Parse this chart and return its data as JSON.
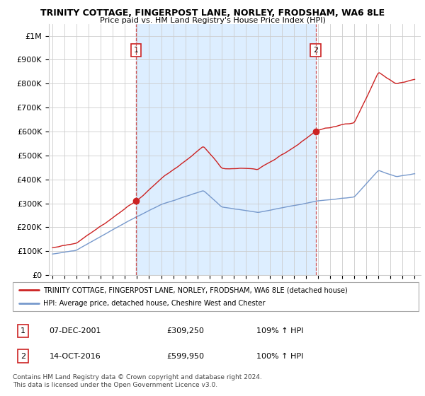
{
  "title": "TRINITY COTTAGE, FINGERPOST LANE, NORLEY, FRODSHAM, WA6 8LE",
  "subtitle": "Price paid vs. HM Land Registry's House Price Index (HPI)",
  "legend_line1": "TRINITY COTTAGE, FINGERPOST LANE, NORLEY, FRODSHAM, WA6 8LE (detached house)",
  "legend_line2": "HPI: Average price, detached house, Cheshire West and Chester",
  "sale1_label": "1",
  "sale1_date": "07-DEC-2001",
  "sale1_price": "£309,250",
  "sale1_hpi": "109% ↑ HPI",
  "sale1_year": 2001.92,
  "sale1_value": 309250,
  "sale2_label": "2",
  "sale2_date": "14-OCT-2016",
  "sale2_price": "£599,950",
  "sale2_hpi": "100% ↑ HPI",
  "sale2_year": 2016.79,
  "sale2_value": 599950,
  "red_color": "#cc2222",
  "blue_color": "#7799cc",
  "shade_color": "#ddeeff",
  "dashed_color": "#cc4444",
  "background_color": "#ffffff",
  "grid_color": "#cccccc",
  "ylim": [
    0,
    1050000
  ],
  "yticks": [
    0,
    100000,
    200000,
    300000,
    400000,
    500000,
    600000,
    700000,
    800000,
    900000,
    1000000
  ],
  "ytick_labels": [
    "£0",
    "£100K",
    "£200K",
    "£300K",
    "£400K",
    "£500K",
    "£600K",
    "£700K",
    "£800K",
    "£900K",
    "£1M"
  ],
  "footer": "Contains HM Land Registry data © Crown copyright and database right 2024.\nThis data is licensed under the Open Government Licence v3.0.",
  "xmin": 1995,
  "xmax": 2025
}
